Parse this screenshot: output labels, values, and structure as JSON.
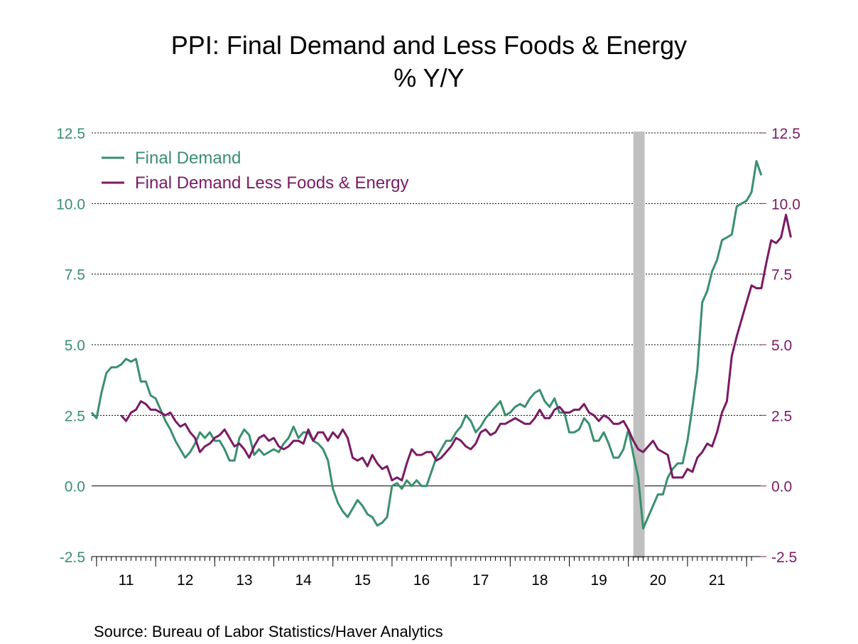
{
  "title": "PPI: Final Demand and Less Foods & Energy",
  "subtitle": "% Y/Y",
  "source": "Source:  Bureau of Labor Statistics/Haver Analytics",
  "colors": {
    "final_demand": "#3a8f6f",
    "core": "#7a1a64",
    "recession": "#c0c0c0"
  },
  "chart_data": {
    "type": "line",
    "title": "PPI: Final Demand and Less Foods & Energy",
    "subtitle": "% Y/Y",
    "xlabel": "",
    "ylabel": "",
    "ylim": [
      -2.5,
      12.5
    ],
    "yticks": [
      "12.5",
      "10.0",
      "7.5",
      "5.0",
      "2.5",
      "0.0",
      "-2.5"
    ],
    "x_tick_labels": [
      "11",
      "12",
      "13",
      "14",
      "15",
      "16",
      "17",
      "18",
      "19",
      "20",
      "21"
    ],
    "x_start": "2010-12",
    "grid": true,
    "legend_position": "top-left",
    "recession_shading": [
      "2020-02",
      "2020-04"
    ],
    "series": [
      {
        "name": "Final Demand",
        "start": "2010-12",
        "values": [
          2.6,
          2.4,
          3.3,
          4.0,
          4.2,
          4.2,
          4.3,
          4.5,
          4.4,
          4.5,
          3.7,
          3.7,
          3.2,
          3.1,
          2.7,
          2.3,
          2.0,
          1.6,
          1.3,
          1.0,
          1.2,
          1.5,
          1.9,
          1.7,
          1.9,
          1.6,
          1.6,
          1.3,
          0.9,
          0.9,
          1.7,
          2.0,
          1.8,
          1.1,
          1.3,
          1.1,
          1.2,
          1.3,
          1.2,
          1.5,
          1.7,
          2.1,
          1.7,
          1.9,
          1.9,
          1.6,
          1.5,
          1.3,
          0.9,
          -0.1,
          -0.6,
          -0.9,
          -1.1,
          -0.8,
          -0.5,
          -0.7,
          -1.0,
          -1.1,
          -1.4,
          -1.3,
          -1.1,
          0.0,
          0.1,
          -0.1,
          0.2,
          0.0,
          0.2,
          0.0,
          0.0,
          0.5,
          1.0,
          1.3,
          1.6,
          1.6,
          1.9,
          2.1,
          2.5,
          2.3,
          1.9,
          2.1,
          2.4,
          2.6,
          2.8,
          3.0,
          2.5,
          2.6,
          2.8,
          2.9,
          2.8,
          3.1,
          3.3,
          3.4,
          3.0,
          2.8,
          3.1,
          2.6,
          2.6,
          1.9,
          1.9,
          2.0,
          2.4,
          2.2,
          1.6,
          1.6,
          1.9,
          1.5,
          1.0,
          1.0,
          1.3,
          2.0,
          1.1,
          0.3,
          -1.5,
          -1.1,
          -0.7,
          -0.3,
          -0.3,
          0.3,
          0.6,
          0.8,
          0.8,
          1.6,
          2.8,
          4.1,
          6.5,
          6.9,
          7.6,
          8.0,
          8.7,
          8.8,
          8.9,
          9.9,
          10.0,
          10.1,
          10.4,
          11.5,
          11.0
        ]
      },
      {
        "name": "Final Demand Less Foods & Energy",
        "start": "2011-06",
        "values": [
          2.5,
          2.3,
          2.6,
          2.7,
          3.0,
          2.9,
          2.7,
          2.7,
          2.6,
          2.5,
          2.6,
          2.3,
          2.1,
          2.2,
          1.9,
          1.7,
          1.2,
          1.4,
          1.5,
          1.7,
          1.8,
          2.0,
          1.7,
          1.4,
          1.5,
          1.3,
          1.0,
          1.4,
          1.7,
          1.8,
          1.6,
          1.7,
          1.4,
          1.3,
          1.4,
          1.6,
          1.6,
          1.5,
          2.0,
          1.6,
          1.9,
          1.9,
          1.6,
          1.9,
          1.7,
          2.0,
          1.7,
          1.0,
          0.9,
          1.0,
          0.7,
          1.1,
          0.8,
          0.6,
          0.7,
          0.2,
          0.3,
          0.2,
          0.8,
          1.3,
          1.1,
          1.1,
          1.2,
          1.2,
          0.9,
          1.0,
          1.2,
          1.4,
          1.7,
          1.6,
          1.4,
          1.3,
          1.5,
          1.9,
          2.0,
          1.8,
          1.9,
          2.2,
          2.2,
          2.3,
          2.4,
          2.3,
          2.2,
          2.2,
          2.4,
          2.7,
          2.4,
          2.4,
          2.7,
          2.8,
          2.6,
          2.6,
          2.7,
          2.7,
          2.9,
          2.6,
          2.5,
          2.3,
          2.5,
          2.4,
          2.2,
          2.2,
          2.3,
          2.0,
          1.6,
          1.3,
          1.2,
          1.4,
          1.6,
          1.3,
          1.2,
          1.1,
          0.3,
          0.3,
          0.3,
          0.6,
          0.5,
          1.0,
          1.2,
          1.5,
          1.4,
          1.9,
          2.6,
          3.0,
          4.6,
          5.3,
          5.9,
          6.5,
          7.1,
          7.0,
          7.0,
          7.9,
          8.7,
          8.6,
          8.8,
          9.6,
          8.8
        ]
      }
    ]
  }
}
